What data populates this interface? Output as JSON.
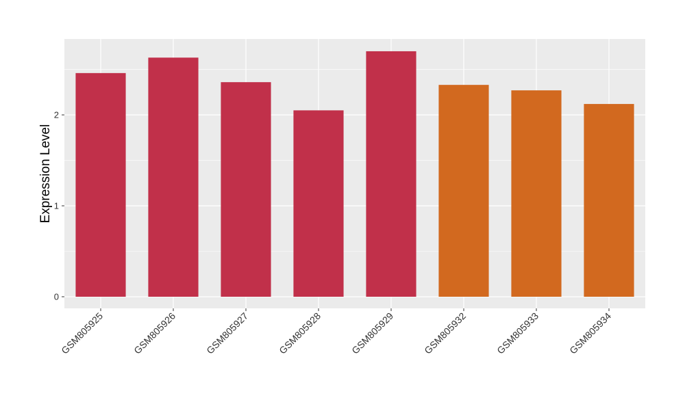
{
  "chart_data": {
    "type": "bar",
    "y_label": "Expression Level",
    "categories": [
      "GSM805925",
      "GSM805926",
      "GSM805927",
      "GSM805928",
      "GSM805929",
      "GSM805932",
      "GSM805933",
      "GSM805934"
    ],
    "values": [
      2.46,
      2.63,
      2.36,
      2.05,
      2.7,
      2.33,
      2.27,
      2.12
    ],
    "colors": [
      "#c1304a",
      "#c1304a",
      "#c1304a",
      "#c1304a",
      "#c1304a",
      "#d2691f",
      "#d2691f",
      "#d2691f"
    ],
    "ylim": [
      -0.128,
      2.835
    ],
    "yticks": [
      0,
      1,
      2
    ],
    "grid": true
  }
}
